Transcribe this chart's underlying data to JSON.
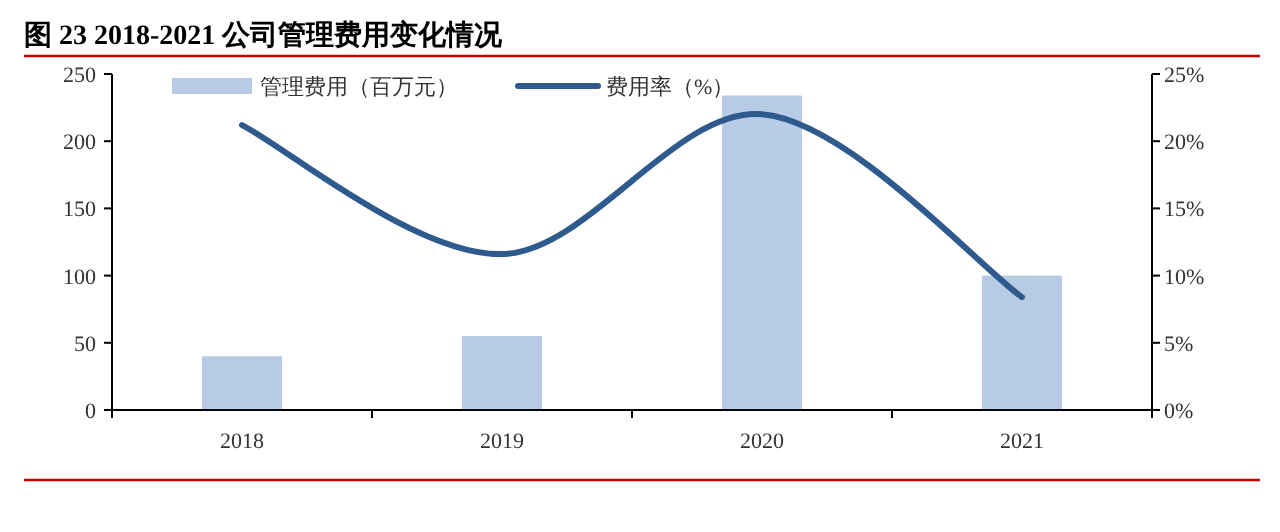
{
  "chart_data": {
    "type": "bar",
    "title": "图 23 2018-2021 公司管理费用变化情况",
    "categories": [
      "2018",
      "2019",
      "2020",
      "2021"
    ],
    "series": [
      {
        "name": "管理费用（百万元）",
        "color": "#b7cce4",
        "values": [
          40,
          55,
          234,
          100
        ]
      },
      {
        "name": "费用率（%）",
        "type": "line",
        "axis": "y2",
        "color": "#2e5a8e",
        "values": [
          21.2,
          11.6,
          22.0,
          8.4
        ]
      }
    ],
    "ylim": [
      0,
      250
    ],
    "yticks": [
      0,
      50,
      100,
      150,
      200,
      250
    ],
    "y2lim": [
      0,
      25
    ],
    "y2ticks": [
      {
        "value": 0,
        "label": "0%"
      },
      {
        "value": 5,
        "label": "5%"
      },
      {
        "value": 10,
        "label": "10%"
      },
      {
        "value": 15,
        "label": "15%"
      },
      {
        "value": 20,
        "label": "20%"
      },
      {
        "value": 25,
        "label": "25%"
      }
    ],
    "legend": "top"
  }
}
